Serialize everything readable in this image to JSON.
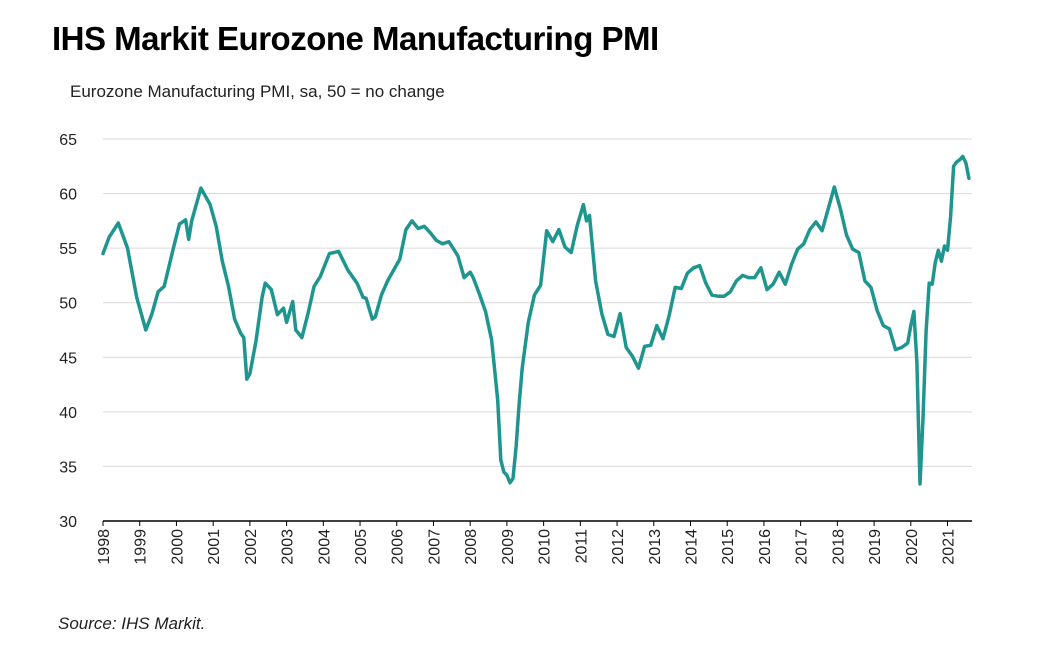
{
  "header": {
    "title": "IHS Markit Eurozone Manufacturing PMI",
    "subtitle": "Eurozone Manufacturing PMI, sa, 50 = no change"
  },
  "footer": {
    "source": "Source: IHS Markit."
  },
  "colors": {
    "line": "#1f9590",
    "grid": "#d9d9d9",
    "axis": "#000000"
  },
  "chart_data": {
    "type": "line",
    "title": "IHS Markit Eurozone Manufacturing PMI",
    "subtitle": "Eurozone Manufacturing PMI, sa, 50 = no change",
    "xlabel": "",
    "ylabel": "",
    "ylim": [
      30,
      65
    ],
    "xlim": [
      "1998-01",
      "2021-09"
    ],
    "yticks": [
      30,
      35,
      40,
      45,
      50,
      55,
      60,
      65
    ],
    "xticks": [
      "1998",
      "1999",
      "2000",
      "2001",
      "2002",
      "2003",
      "2004",
      "2005",
      "2006",
      "2007",
      "2008",
      "2009",
      "2010",
      "2011",
      "2012",
      "2013",
      "2014",
      "2015",
      "2016",
      "2017",
      "2018",
      "2019",
      "2020",
      "2021"
    ],
    "grid": "horizontal",
    "legend": "none",
    "series": [
      {
        "values_x": [
          "1998-01",
          "1998-03",
          "1998-06",
          "1998-09",
          "1998-12",
          "1999-03",
          "1999-05",
          "1999-07",
          "1999-09",
          "1999-12",
          "2000-02",
          "2000-04",
          "2000-05",
          "2000-06",
          "2000-09",
          "2000-12",
          "2001-02",
          "2001-04",
          "2001-06",
          "2001-08",
          "2001-10",
          "2001-11",
          "2001-12",
          "2002-01",
          "2002-03",
          "2002-05",
          "2002-06",
          "2002-08",
          "2002-10",
          "2002-12",
          "2003-01",
          "2003-03",
          "2003-04",
          "2003-06",
          "2003-08",
          "2003-10",
          "2003-12",
          "2004-03",
          "2004-06",
          "2004-09",
          "2004-12",
          "2005-02",
          "2005-03",
          "2005-05",
          "2005-06",
          "2005-08",
          "2005-10",
          "2005-12",
          "2006-02",
          "2006-04",
          "2006-06",
          "2006-08",
          "2006-10",
          "2006-12",
          "2007-02",
          "2007-04",
          "2007-06",
          "2007-09",
          "2007-11",
          "2008-01",
          "2008-02",
          "2008-04",
          "2008-06",
          "2008-08",
          "2008-10",
          "2008-11",
          "2008-12",
          "2009-01",
          "2009-02",
          "2009-03",
          "2009-04",
          "2009-05",
          "2009-06",
          "2009-08",
          "2009-10",
          "2009-12",
          "2010-02",
          "2010-04",
          "2010-06",
          "2010-08",
          "2010-10",
          "2010-12",
          "2011-02",
          "2011-03",
          "2011-04",
          "2011-06",
          "2011-08",
          "2011-10",
          "2011-12",
          "2012-02",
          "2012-04",
          "2012-06",
          "2012-08",
          "2012-10",
          "2012-12",
          "2013-02",
          "2013-04",
          "2013-06",
          "2013-08",
          "2013-10",
          "2013-12",
          "2014-02",
          "2014-04",
          "2014-06",
          "2014-08",
          "2014-10",
          "2014-12",
          "2015-02",
          "2015-04",
          "2015-06",
          "2015-08",
          "2015-10",
          "2015-12",
          "2016-02",
          "2016-04",
          "2016-06",
          "2016-08",
          "2016-10",
          "2016-12",
          "2017-02",
          "2017-04",
          "2017-06",
          "2017-08",
          "2017-10",
          "2017-12",
          "2018-02",
          "2018-04",
          "2018-06",
          "2018-08",
          "2018-10",
          "2018-12",
          "2019-02",
          "2019-04",
          "2019-06",
          "2019-08",
          "2019-10",
          "2019-12",
          "2020-01",
          "2020-02",
          "2020-03",
          "2020-04",
          "2020-05",
          "2020-06",
          "2020-07",
          "2020-08",
          "2020-09",
          "2020-10",
          "2020-11",
          "2020-12",
          "2021-01",
          "2021-02",
          "2021-03",
          "2021-04",
          "2021-05",
          "2021-06",
          "2021-07",
          "2021-08"
        ],
        "values": [
          54.5,
          56.0,
          57.3,
          55.0,
          50.5,
          47.5,
          49.0,
          51.0,
          51.5,
          55.0,
          57.2,
          57.6,
          55.8,
          57.5,
          60.5,
          59.0,
          57.0,
          53.8,
          51.5,
          48.5,
          47.2,
          46.8,
          43.0,
          43.5,
          46.5,
          50.5,
          51.8,
          51.2,
          48.9,
          49.5,
          48.2,
          50.1,
          47.5,
          46.8,
          49.0,
          51.5,
          52.4,
          54.5,
          54.7,
          53.0,
          51.8,
          50.5,
          50.4,
          48.5,
          48.7,
          50.7,
          52.0,
          53.0,
          54.0,
          56.7,
          57.5,
          56.8,
          57.0,
          56.4,
          55.7,
          55.4,
          55.6,
          54.3,
          52.3,
          52.8,
          52.3,
          50.8,
          49.2,
          46.6,
          41.1,
          35.6,
          34.5,
          34.2,
          33.5,
          33.9,
          36.8,
          40.7,
          44.0,
          48.2,
          50.7,
          51.6,
          56.6,
          55.6,
          56.7,
          55.1,
          54.6,
          57.1,
          59.0,
          57.5,
          58.0,
          52.0,
          49.0,
          47.1,
          46.9,
          49.0,
          45.9,
          45.1,
          44.0,
          46.0,
          46.1,
          47.9,
          46.7,
          48.8,
          51.4,
          51.3,
          52.7,
          53.2,
          53.4,
          51.8,
          50.7,
          50.6,
          50.6,
          51.0,
          52.0,
          52.5,
          52.3,
          52.3,
          53.2,
          51.2,
          51.7,
          52.8,
          51.7,
          53.5,
          54.9,
          55.4,
          56.7,
          57.4,
          56.6,
          58.6,
          60.6,
          58.6,
          56.2,
          54.9,
          54.6,
          52.0,
          51.4,
          49.3,
          47.9,
          47.6,
          45.7,
          45.9,
          46.3,
          47.9,
          49.2,
          44.5,
          33.4,
          39.4,
          47.4,
          51.8,
          51.7,
          53.7,
          54.8,
          53.8,
          55.2,
          54.8,
          57.9,
          62.5,
          62.9,
          63.1,
          63.4,
          62.8,
          61.4
        ]
      }
    ]
  }
}
